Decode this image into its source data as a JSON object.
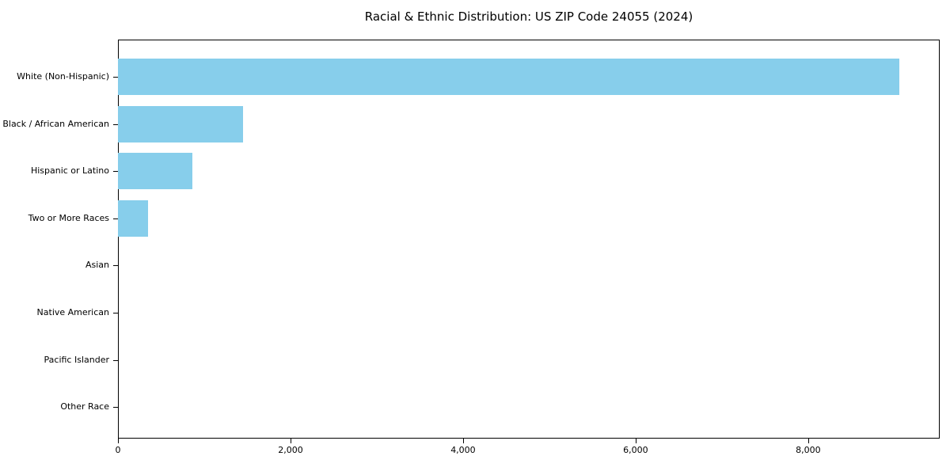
{
  "chart_data": {
    "type": "bar",
    "orientation": "horizontal",
    "title": "Racial & Ethnic Distribution: US ZIP Code 24055 (2024)",
    "categories": [
      "White (Non-Hispanic)",
      "Black / African American",
      "Hispanic or Latino",
      "Two or More Races",
      "Asian",
      "Native American",
      "Pacific Islander",
      "Other Race"
    ],
    "values": [
      9060,
      1450,
      865,
      350,
      0,
      0,
      0,
      0
    ],
    "xlabel": "",
    "ylabel": "",
    "xlim": [
      0,
      9524
    ],
    "x_ticks": [
      {
        "value": 0,
        "label": "0"
      },
      {
        "value": 2000,
        "label": "2,000"
      },
      {
        "value": 4000,
        "label": "4,000"
      },
      {
        "value": 6000,
        "label": "6,000"
      },
      {
        "value": 8000,
        "label": "8,000"
      }
    ],
    "bar_color": "#87CEEB",
    "background_color": "#ffffff",
    "frame_color": "#000000",
    "grid": false,
    "legend": null
  }
}
